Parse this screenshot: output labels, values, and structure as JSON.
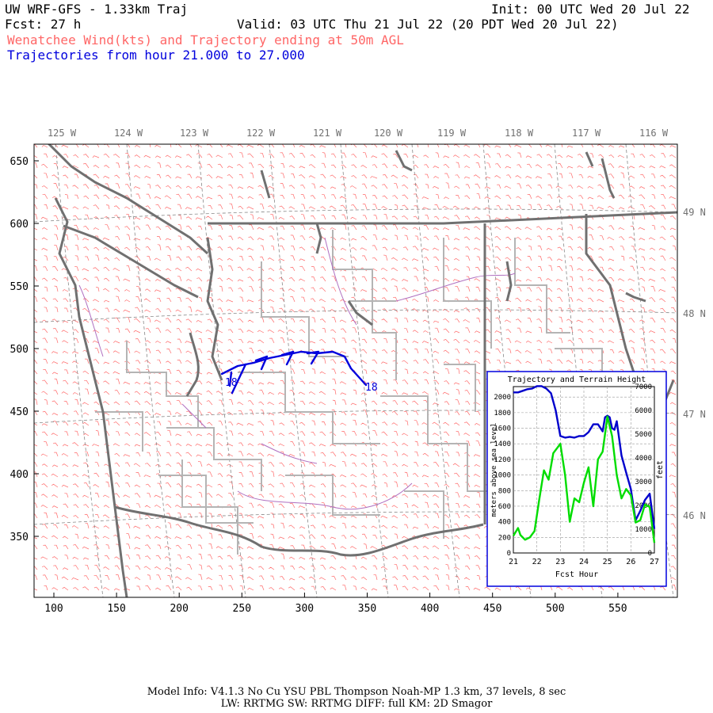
{
  "header": {
    "title": "UW WRF-GFS - 1.33km Traj",
    "init": "Init: 00 UTC Wed 20 Jul 22",
    "fcst": "Fcst:   27 h",
    "valid": "Valid: 03 UTC Thu 21 Jul 22 (20 PDT Wed 20 Jul 22)",
    "subtitle_red": "Wenatchee Wind(kts) and Trajectory ending at 50m AGL",
    "subtitle_blue": "Trajectories from hour  21.000 to  27.000"
  },
  "map": {
    "lon_labels": [
      "125 W",
      "124 W",
      "123 W",
      "122 W",
      "121 W",
      "120 W",
      "119 W",
      "118 W",
      "117 W",
      "116 W"
    ],
    "lat_labels": [
      "49 N",
      "48 N",
      "47 N",
      "46 N"
    ],
    "x_ticks": [
      "100",
      "150",
      "200",
      "250",
      "300",
      "350",
      "400",
      "450",
      "500",
      "550"
    ],
    "y_ticks": [
      "650",
      "600",
      "550",
      "500",
      "450",
      "400",
      "350"
    ],
    "trajectory": {
      "color": "#0000dd",
      "start_label": "18",
      "end_label": "18"
    },
    "colors": {
      "barbs": "#ff6a6a",
      "coast": "#707070",
      "borders": "#b4b4b4",
      "rivers": "#b070c0"
    }
  },
  "chart_data": {
    "type": "line",
    "title": "Trajectory and Terrain Height",
    "xlabel": "Fcst Hour",
    "ylabel_left": "meters above sea level",
    "ylabel_right": "feet",
    "x_ticks": [
      "21",
      "22",
      "23",
      "24",
      "25",
      "26",
      "27"
    ],
    "y_ticks_left": [
      "0",
      "200",
      "400",
      "600",
      "800",
      "1000",
      "1200",
      "1400",
      "1600",
      "1800",
      "2000"
    ],
    "y_ticks_right": [
      "0",
      "1000",
      "2000",
      "3000",
      "4000",
      "5000",
      "6000",
      "7000"
    ],
    "xlim": [
      21,
      27
    ],
    "ylim": [
      0,
      2134
    ],
    "grid": true,
    "series": [
      {
        "color": "#0000cc",
        "x": [
          21.0,
          21.2,
          21.4,
          21.6,
          21.8,
          22.0,
          22.2,
          22.4,
          22.6,
          22.8,
          23.0,
          23.2,
          23.4,
          23.6,
          23.8,
          24.0,
          24.2,
          24.4,
          24.6,
          24.8,
          24.9,
          25.0,
          25.1,
          25.2,
          25.3,
          25.4,
          25.6,
          25.8,
          26.0,
          26.2,
          26.4,
          26.6,
          26.8,
          27.0
        ],
        "y": [
          2060,
          2060,
          2080,
          2100,
          2110,
          2140,
          2140,
          2110,
          2050,
          1830,
          1500,
          1480,
          1490,
          1480,
          1500,
          1500,
          1550,
          1650,
          1650,
          1560,
          1740,
          1760,
          1740,
          1600,
          1580,
          1690,
          1250,
          1030,
          820,
          420,
          540,
          680,
          760,
          310
        ]
      },
      {
        "color": "#00dd00",
        "x": [
          21.0,
          21.2,
          21.3,
          21.5,
          21.7,
          21.9,
          22.1,
          22.3,
          22.5,
          22.7,
          23.0,
          23.2,
          23.4,
          23.6,
          23.8,
          24.0,
          24.2,
          24.4,
          24.6,
          24.8,
          25.0,
          25.2,
          25.4,
          25.6,
          25.8,
          26.0,
          26.2,
          26.4,
          26.6,
          26.8,
          27.0
        ],
        "y": [
          220,
          320,
          230,
          170,
          200,
          280,
          680,
          1060,
          940,
          1280,
          1400,
          1000,
          400,
          700,
          650,
          900,
          1100,
          600,
          1200,
          1300,
          1750,
          1500,
          1000,
          700,
          820,
          740,
          390,
          420,
          620,
          590,
          130
        ]
      }
    ]
  },
  "footer": {
    "line1": "Model Info: V4.1.3    No Cu    YSU PBL  Thompson     Noah-MP    1.3 km,  37 levels,     8 sec",
    "line2": "LW: RRTMG SW: RRTMG    DIFF: full    KM: 2D Smagor"
  }
}
